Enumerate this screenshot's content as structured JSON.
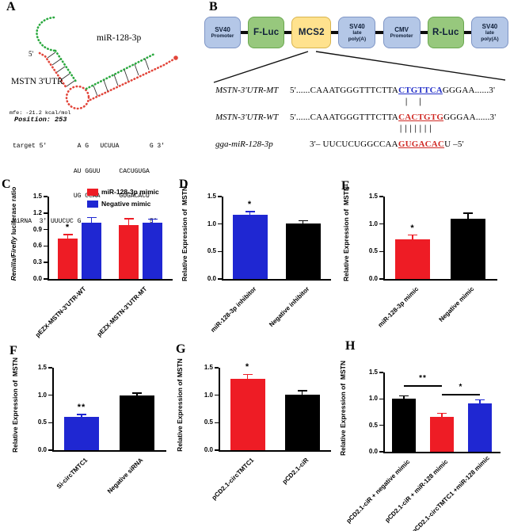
{
  "panel_letters": {
    "a": "A",
    "b": "B",
    "c": "C",
    "d": "D",
    "e": "E",
    "f": "F",
    "g": "G",
    "h": "H"
  },
  "panel_a": {
    "labels": {
      "mirna_name": "miR-128-3p",
      "five_prime": "5'",
      "target_name": "MSTN 3'UTR",
      "mfe": "mfe: -21.2 kcal/mol"
    },
    "colors": {
      "mirna_strand": "#2ba93f",
      "target_strand": "#e2453a"
    },
    "position_line": "Position: 253",
    "alignment_lines": [
      "target 5'        A G   UCUUA        G 3'",
      "                AU GGUU     CACUGUGA",
      "                UG CCAA     GUGACACU",
      "miRNA  3' UUUCUC G                  5'"
    ]
  },
  "panel_b": {
    "construct_boxes": [
      {
        "lines": [
          "SV40",
          "Promoter"
        ],
        "fill": "#b4c7e7",
        "border": "#7e95c5"
      },
      {
        "lines": [
          "F-Luc"
        ],
        "fill": "#97c87d",
        "border": "#6aa84f"
      },
      {
        "lines": [
          "MCS2"
        ],
        "fill": "#ffe28e",
        "border": "#d8b44e"
      },
      {
        "lines": [
          "SV40",
          "late",
          "poly(A)"
        ],
        "fill": "#b4c7e7",
        "border": "#7e95c5"
      },
      {
        "lines": [
          "CMV",
          "Promoter"
        ],
        "fill": "#b4c7e7",
        "border": "#7e95c5"
      },
      {
        "lines": [
          "R-Luc"
        ],
        "fill": "#97c87d",
        "border": "#6aa84f"
      },
      {
        "lines": [
          "SV40",
          "late",
          "poly(A)"
        ],
        "fill": "#b4c7e7",
        "border": "#7e95c5"
      }
    ],
    "sequences": [
      {
        "name": "MSTN-3'UTR-MT",
        "prefix": "5'......CAAATGGGTTTCTTA",
        "highlight": "CTGTTCA",
        "highlight_color": "#2430c8",
        "suffix": "GGGAA......3'"
      },
      {
        "name": "MSTN-3'UTR-WT",
        "prefix": "5'......CAAATGGGTTTCTTA",
        "highlight": "CACTGTG",
        "highlight_color": "#d02a25",
        "suffix": "GGGAA......3'"
      },
      {
        "name": "gga-miR-128-3p",
        "prefix": "3'– UUCUCUGGCCAA",
        "highlight": "GUGACAC",
        "highlight_color": "#d02a25",
        "suffix": "U –5'"
      }
    ],
    "match_marks": {
      "mt_wt": "||",
      "wt_mir": "|||||||"
    }
  },
  "chart_data": [
    {
      "panel": "C",
      "type": "bar",
      "ylabel_parts": [
        {
          "text": "Renilla/Firefly",
          "italic": true
        },
        {
          "text": " luciferase ratio",
          "italic": false
        }
      ],
      "ylim": [
        0,
        1.5
      ],
      "yticks": [
        "0.0",
        "0.3",
        "0.6",
        "0.9",
        "1.2",
        "1.5"
      ],
      "legend": [
        {
          "label": "miR-128-3p mimic",
          "color": "#ee1c25"
        },
        {
          "label": "Negative mimic",
          "color": "#1f27d2"
        }
      ],
      "groups": [
        {
          "label": "pEZX-MSTN-3'UTR-WT",
          "bars": [
            {
              "value": 0.73,
              "err": 0.08,
              "color": "#ee1c25",
              "sig": "*"
            },
            {
              "value": 1.03,
              "err": 0.09,
              "color": "#1f27d2",
              "sig": ""
            }
          ]
        },
        {
          "label": "pEZX-MSTN-3'UTR-MT",
          "bars": [
            {
              "value": 0.98,
              "err": 0.12,
              "color": "#ee1c25",
              "sig": ""
            },
            {
              "value": 1.03,
              "err": 0.06,
              "color": "#1f27d2",
              "sig": ""
            }
          ]
        }
      ],
      "brackets": []
    },
    {
      "panel": "D",
      "type": "bar",
      "ylabel_parts": [
        {
          "text": "Relative Expression of  MSTN",
          "italic": false
        }
      ],
      "ylim": [
        0,
        1.5
      ],
      "yticks": [
        "0.0",
        "0.5",
        "1.0",
        "1.5"
      ],
      "legend": [],
      "groups": [
        {
          "label": "miR-128-3p inhibitor",
          "bars": [
            {
              "value": 1.17,
              "err": 0.06,
              "color": "#1f27d2",
              "sig": "*"
            }
          ]
        },
        {
          "label": "Negative inhibitor",
          "bars": [
            {
              "value": 1.01,
              "err": 0.05,
              "color": "#000000",
              "sig": ""
            }
          ]
        }
      ],
      "brackets": []
    },
    {
      "panel": "E",
      "type": "bar",
      "ylabel_parts": [
        {
          "text": "Relative Expression of  MSTN",
          "italic": false
        }
      ],
      "ylim": [
        0,
        1.5
      ],
      "yticks": [
        "0.0",
        "0.5",
        "1.0",
        "1.5"
      ],
      "legend": [],
      "groups": [
        {
          "label": "miR-128-3p mimic",
          "bars": [
            {
              "value": 0.72,
              "err": 0.08,
              "color": "#ee1c25",
              "sig": "*"
            }
          ]
        },
        {
          "label": "Negative mimic",
          "bars": [
            {
              "value": 1.09,
              "err": 0.11,
              "color": "#000000",
              "sig": ""
            }
          ]
        }
      ],
      "brackets": []
    },
    {
      "panel": "F",
      "type": "bar",
      "ylabel_parts": [
        {
          "text": "Relative Expression of  MSTN",
          "italic": false
        }
      ],
      "ylim": [
        0,
        1.5
      ],
      "yticks": [
        "0.0",
        "0.5",
        "1.0",
        "1.5"
      ],
      "legend": [],
      "groups": [
        {
          "label": "Si-circTMTC1",
          "bars": [
            {
              "value": 0.61,
              "err": 0.04,
              "color": "#1f27d2",
              "sig": "**"
            }
          ]
        },
        {
          "label": "Negative siRNA",
          "bars": [
            {
              "value": 1.0,
              "err": 0.04,
              "color": "#000000",
              "sig": ""
            }
          ]
        }
      ],
      "brackets": []
    },
    {
      "panel": "G",
      "type": "bar",
      "ylabel_parts": [
        {
          "text": "Relative Expression of MSTN",
          "italic": false
        }
      ],
      "ylim": [
        0,
        1.5
      ],
      "yticks": [
        "0.0",
        "0.5",
        "1.0",
        "1.5"
      ],
      "legend": [],
      "groups": [
        {
          "label": "pCD2.1-circTMTC1",
          "bars": [
            {
              "value": 1.3,
              "err": 0.08,
              "color": "#ee1c25",
              "sig": "*"
            }
          ]
        },
        {
          "label": "pCD2.1-ciR",
          "bars": [
            {
              "value": 1.01,
              "err": 0.07,
              "color": "#000000",
              "sig": ""
            }
          ]
        }
      ],
      "brackets": []
    },
    {
      "panel": "H",
      "type": "bar",
      "ylabel_parts": [
        {
          "text": "Relative Expression of  MSTN",
          "italic": false
        }
      ],
      "ylim": [
        0,
        1.5
      ],
      "yticks": [
        "0.0",
        "0.5",
        "1.0",
        "1.5"
      ],
      "legend": [],
      "groups": [
        {
          "label": "pCD2.1-ciR + negative mimic",
          "bars": [
            {
              "value": 1.01,
              "err": 0.05,
              "color": "#000000",
              "sig": ""
            }
          ]
        },
        {
          "label": "pCD2.1-ciR + miR-128 mimic",
          "bars": [
            {
              "value": 0.66,
              "err": 0.07,
              "color": "#ee1c25",
              "sig": ""
            }
          ]
        },
        {
          "label": "pCD2.1-circTMTC1 +miR-128 mimic",
          "bars": [
            {
              "value": 0.92,
              "err": 0.06,
              "color": "#1f27d2",
              "sig": ""
            }
          ]
        }
      ],
      "brackets": [
        {
          "from": 0,
          "to": 1,
          "value": 1.26,
          "label": "**"
        },
        {
          "from": 1,
          "to": 2,
          "value": 1.09,
          "label": "*"
        }
      ]
    }
  ]
}
